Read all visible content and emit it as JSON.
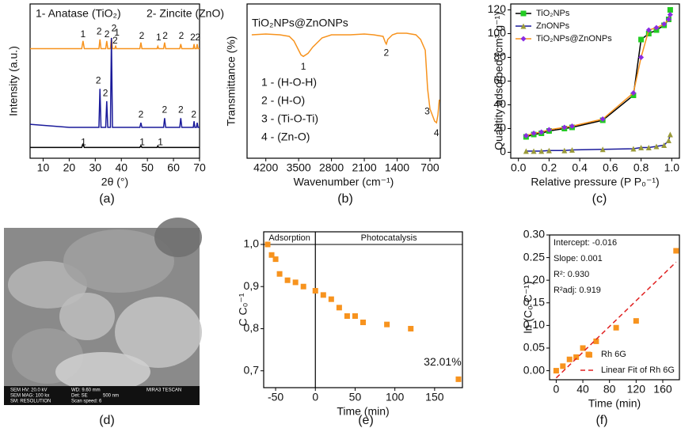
{
  "chart_data": [
    {
      "type": "line",
      "caption": "(a)",
      "xlabel": "2θ (°)",
      "ylabel": "Intensity (a.u.)",
      "notes": [
        "1- Anatase (TiO₂)",
        "2- Zincite (ZnO)"
      ],
      "xlim": [
        5,
        70
      ],
      "ylim": [
        0,
        100
      ],
      "xticks": [
        10,
        20,
        30,
        40,
        50,
        60,
        70
      ],
      "series": [
        {
          "color": "#f7931e",
          "x": [
            5,
            20,
            24.8,
            25.3,
            25.8,
            31.4,
            31.8,
            32.2,
            34.0,
            34.4,
            34.8,
            35.8,
            36.2,
            36.6,
            37.5,
            37.8,
            38.1,
            47.1,
            47.5,
            47.9,
            53.7,
            54.0,
            54.3,
            56.2,
            56.6,
            57.0,
            62.4,
            62.8,
            63.2,
            67.6,
            67.9,
            68.2,
            68.8,
            69.1,
            69.4,
            70
          ],
          "values": [
            71,
            71,
            71,
            76,
            71,
            71,
            77,
            71,
            71,
            76,
            71,
            71,
            78,
            71,
            71,
            73,
            71,
            71,
            75,
            71,
            71,
            72.5,
            71,
            71,
            75,
            71,
            71,
            74,
            71,
            71,
            74,
            71,
            71,
            74,
            71,
            71
          ]
        },
        {
          "color": "#1a1a9a",
          "x": [
            5,
            20,
            24.8,
            25.3,
            25.8,
            31.4,
            31.8,
            32.2,
            34.0,
            34.4,
            34.8,
            35.8,
            36.2,
            36.6,
            37.5,
            37.8,
            38.1,
            47.1,
            47.5,
            47.9,
            53.7,
            54.0,
            54.3,
            56.2,
            56.6,
            57.0,
            62.4,
            62.8,
            63.2,
            67.6,
            67.9,
            68.2,
            68.8,
            69.1,
            69.4,
            70
          ],
          "values": [
            22,
            20,
            20,
            20,
            20,
            20,
            45,
            20,
            20,
            37,
            20,
            20,
            78,
            20,
            20,
            20,
            20,
            20,
            23,
            20,
            20,
            20,
            20,
            20,
            26,
            20,
            20,
            26,
            20,
            20,
            24,
            20,
            20,
            23,
            20,
            20
          ]
        },
        {
          "color": "#000000",
          "x": [
            5,
            20,
            24.8,
            25.3,
            25.8,
            31.4,
            31.8,
            32.2,
            34.0,
            34.4,
            34.8,
            35.8,
            36.2,
            36.6,
            37.5,
            37.8,
            38.1,
            47.1,
            47.5,
            47.9,
            53.7,
            54.0,
            54.3,
            56.2,
            56.6,
            57.0,
            62.4,
            62.8,
            63.2,
            67.6,
            67.9,
            68.2,
            68.8,
            69.1,
            69.4,
            70
          ],
          "values": [
            7,
            7,
            7,
            9,
            7,
            7,
            7,
            7,
            7,
            7,
            7,
            7,
            7,
            7,
            7,
            7,
            7,
            7,
            8,
            7,
            7,
            8,
            7,
            7,
            7,
            7,
            7,
            7,
            7,
            7,
            7,
            7,
            7,
            7,
            7,
            7
          ]
        }
      ],
      "annotations": [
        {
          "text": "1",
          "x": 25.3,
          "y": 80
        },
        {
          "text": "2",
          "x": 31.5,
          "y": 82
        },
        {
          "text": "2",
          "x": 34.5,
          "y": 80
        },
        {
          "text": "2",
          "x": 37.2,
          "y": 84
        },
        {
          "text": "1",
          "x": 38.3,
          "y": 81
        },
        {
          "text": "2",
          "x": 47.8,
          "y": 79
        },
        {
          "text": "1",
          "x": 54.3,
          "y": 78
        },
        {
          "text": "2",
          "x": 56.8,
          "y": 79
        },
        {
          "text": "2",
          "x": 63,
          "y": 79
        },
        {
          "text": "2",
          "x": 67.4,
          "y": 78
        },
        {
          "text": "2",
          "x": 69.3,
          "y": 78
        },
        {
          "text": "2",
          "x": 31.2,
          "y": 50
        },
        {
          "text": "2",
          "x": 33.9,
          "y": 42
        },
        {
          "text": "2",
          "x": 37.6,
          "y": 76
        },
        {
          "text": "2",
          "x": 47.5,
          "y": 28
        },
        {
          "text": "2",
          "x": 56.6,
          "y": 31
        },
        {
          "text": "2",
          "x": 62.8,
          "y": 31
        },
        {
          "text": "2",
          "x": 67.8,
          "y": 28
        },
        {
          "text": "1",
          "x": 25.5,
          "y": 10
        },
        {
          "text": "1",
          "x": 48,
          "y": 10
        },
        {
          "text": "1",
          "x": 55,
          "y": 10
        }
      ]
    },
    {
      "type": "line",
      "caption": "(b)",
      "title": "TiO₂NPs@ZnONPs",
      "xlabel": "Wavenumber (cm⁻¹)",
      "ylabel": "Transmittance (%)",
      "notes": [
        "1 - (H-O-H)",
        "2 - (H-O)",
        "3 - (Ti-O-Ti)",
        "4 - (Zn-O)"
      ],
      "xlim": [
        4600,
        480
      ],
      "ylim": [
        0,
        100
      ],
      "xticks": [
        4200,
        3500,
        2800,
        2100,
        1400,
        700
      ],
      "series": [
        {
          "color": "#f7931e",
          "x": [
            4500,
            4200,
            3900,
            3700,
            3600,
            3500,
            3450,
            3400,
            3300,
            3200,
            3000,
            2800,
            2400,
            2100,
            1900,
            1700,
            1650,
            1630,
            1600,
            1500,
            1400,
            1200,
            1000,
            900,
            800,
            750,
            700,
            650,
            600,
            560,
            530,
            510,
            500
          ],
          "values": [
            80,
            80.5,
            80,
            79,
            76,
            70,
            67,
            66,
            68,
            72,
            78,
            80,
            80,
            80.5,
            80,
            79,
            75,
            74,
            77,
            80,
            81,
            81,
            80,
            77,
            70,
            45,
            32,
            28,
            24,
            23,
            28,
            35,
            38
          ]
        }
      ],
      "annotations": [
        {
          "text": "1",
          "x": 3400,
          "y": 59
        },
        {
          "text": "2",
          "x": 1630,
          "y": 68
        },
        {
          "text": "3",
          "x": 760,
          "y": 30
        },
        {
          "text": "4",
          "x": 560,
          "y": 16
        }
      ]
    },
    {
      "type": "line",
      "caption": "(c)",
      "xlabel": "Relative pressure (P P₀⁻¹)",
      "ylabel": "Quantity adsorbed (cm³ g⁻¹)",
      "xlim": [
        -0.05,
        1.05
      ],
      "ylim": [
        -5,
        125
      ],
      "legend": "upper left",
      "xticks": [
        {
          "value": 0,
          "label": "0.0"
        },
        0.2,
        0.4,
        0.6,
        0.8,
        {
          "value": 1,
          "label": "1.0"
        }
      ],
      "yticks": [
        0,
        20,
        40,
        60,
        80,
        100,
        120
      ],
      "series": [
        {
          "name": "TiO₂NPs",
          "color": "#000000",
          "marker": "square",
          "marker_color": "#22cc22",
          "x": [
            0.05,
            0.1,
            0.15,
            0.2,
            0.3,
            0.35,
            0.55,
            0.75,
            0.8,
            0.85,
            0.9,
            0.95,
            0.98,
            0.99
          ],
          "values": [
            13,
            15,
            16,
            18,
            20,
            21,
            27,
            48,
            95,
            100,
            103,
            107,
            112,
            120
          ]
        },
        {
          "name": "ZnONPs",
          "color": "#1a1a9a",
          "marker": "triangle",
          "marker_color": "#9a9a3a",
          "x": [
            0.05,
            0.1,
            0.15,
            0.2,
            0.3,
            0.35,
            0.55,
            0.75,
            0.8,
            0.85,
            0.9,
            0.95,
            0.98,
            0.99
          ],
          "values": [
            1,
            1,
            1,
            1.5,
            1.5,
            2,
            2.5,
            3,
            4,
            4,
            5,
            6,
            10,
            15
          ]
        },
        {
          "name": "TiO₂NPs@ZnONPs",
          "color": "#f7931e",
          "marker": "diamond",
          "marker_color": "#8a2be2",
          "x": [
            0.05,
            0.1,
            0.15,
            0.2,
            0.3,
            0.35,
            0.55,
            0.75,
            0.8,
            0.85,
            0.9,
            0.95,
            0.98,
            0.99
          ],
          "values": [
            14,
            16,
            17,
            19,
            21,
            22,
            28,
            50,
            80,
            103,
            105,
            108,
            112,
            116
          ]
        }
      ]
    },
    {
      "type": "image",
      "caption": "(d)",
      "info": [
        "SEM HV: 20.0 kV",
        "WD: 9.60 mm",
        "MIRA3 TESCAN",
        "SEM MAG: 100 kx",
        "Det: SE",
        "500 nm",
        "SM: RESOLUTION",
        "Scan speed: 6"
      ]
    },
    {
      "type": "scatter",
      "caption": "(e)",
      "xlabel": "Time (min)",
      "ylabel": "C C₀⁻¹",
      "regions": [
        "Adsorption",
        "Photocatalysis"
      ],
      "divider_x": 0,
      "xlim": [
        -65,
        185
      ],
      "ylim": [
        0.66,
        1.03
      ],
      "xticks": [
        -50,
        0,
        50,
        100,
        150
      ],
      "yticks": [
        {
          "value": 0.7,
          "label": "0,7"
        },
        {
          "value": 0.8,
          "label": "0,8"
        },
        {
          "value": 0.9,
          "label": "0,9"
        },
        {
          "value": 1.0,
          "label": "1,0"
        }
      ],
      "series": [
        {
          "color": "#f7931e",
          "marker": "square",
          "line": false,
          "x": [
            -60,
            -55,
            -50,
            -45,
            -35,
            -25,
            -15,
            0,
            10,
            20,
            30,
            40,
            50,
            60,
            90,
            120,
            180
          ],
          "values": [
            1.0,
            0.975,
            0.965,
            0.93,
            0.915,
            0.91,
            0.9,
            0.89,
            0.88,
            0.87,
            0.85,
            0.83,
            0.83,
            0.815,
            0.81,
            0.8,
            0.68
          ]
        }
      ],
      "annotations": [
        {
          "text": "32.01%",
          "x": 160,
          "y": 0.72
        }
      ]
    },
    {
      "type": "scatter",
      "caption": "(f)",
      "xlabel": "Time (min)",
      "ylabel": "ln (C₀ C⁻¹)",
      "legend": "lower right",
      "notes": [
        "Intercept: -0.016",
        "Slope: 0.001",
        "R²: 0.930",
        "R²adj: 0.919"
      ],
      "xlim": [
        -10,
        185
      ],
      "ylim": [
        -0.02,
        0.3
      ],
      "xticks": [
        0,
        40,
        80,
        120,
        160
      ],
      "yticks": [
        {
          "value": 0,
          "label": "0.00"
        },
        0.05,
        {
          "value": 0.1,
          "label": "0.10"
        },
        0.15,
        {
          "value": 0.2,
          "label": "0.20"
        },
        0.25,
        {
          "value": 0.3,
          "label": "0.30"
        }
      ],
      "series": [
        {
          "name": "Rh 6G",
          "color": "#f7931e",
          "marker": "square",
          "line": false,
          "x": [
            0,
            10,
            20,
            30,
            40,
            50,
            60,
            90,
            120,
            180
          ],
          "values": [
            0.0,
            0.01,
            0.025,
            0.03,
            0.05,
            0.035,
            0.065,
            0.095,
            0.11,
            0.265
          ]
        },
        {
          "name": "Linear Fit of Rh 6G",
          "color": "#e02020",
          "dash": true,
          "x": [
            0,
            180
          ],
          "values": [
            -0.016,
            0.24
          ]
        }
      ]
    }
  ]
}
